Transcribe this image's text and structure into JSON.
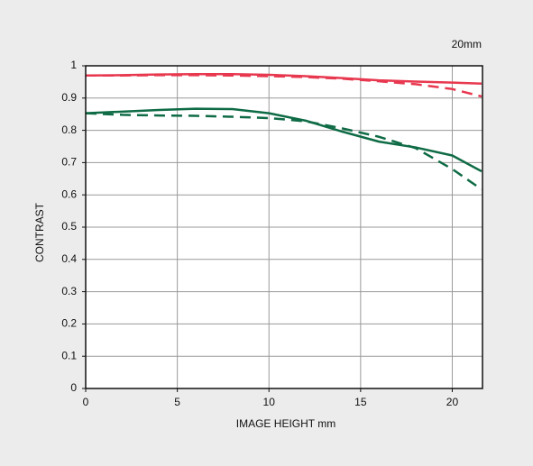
{
  "chart_data": {
    "type": "line",
    "title": "20mm",
    "x_label": "IMAGE HEIGHT   mm",
    "y_label": "CONTRAST",
    "x": [
      0,
      2,
      4,
      6,
      8,
      10,
      12,
      14,
      16,
      18,
      20,
      21.6
    ],
    "series": [
      {
        "color": "#e8384f",
        "dashed": false,
        "values": [
          0.97,
          0.971,
          0.973,
          0.974,
          0.974,
          0.972,
          0.968,
          0.962,
          0.955,
          0.951,
          0.948,
          0.945
        ]
      },
      {
        "color": "#e8384f",
        "dashed": true,
        "values": [
          0.97,
          0.97,
          0.971,
          0.971,
          0.97,
          0.968,
          0.965,
          0.96,
          0.952,
          0.943,
          0.928,
          0.905
        ]
      },
      {
        "color": "#0e6b45",
        "dashed": false,
        "values": [
          0.853,
          0.858,
          0.863,
          0.867,
          0.866,
          0.853,
          0.83,
          0.796,
          0.765,
          0.747,
          0.722,
          0.673
        ]
      },
      {
        "color": "#0e6b45",
        "dashed": true,
        "values": [
          0.853,
          0.848,
          0.846,
          0.845,
          0.842,
          0.838,
          0.828,
          0.806,
          0.78,
          0.745,
          0.68,
          0.617
        ]
      }
    ],
    "xlim": [
      0,
      21.65
    ],
    "xticks": [
      0,
      5,
      10,
      15,
      20
    ],
    "ylim": [
      0,
      1
    ],
    "yticks": [
      0,
      0.1,
      0.2,
      0.3,
      0.4,
      0.5,
      0.6,
      0.7,
      0.8,
      0.9,
      1
    ],
    "grid": true
  }
}
